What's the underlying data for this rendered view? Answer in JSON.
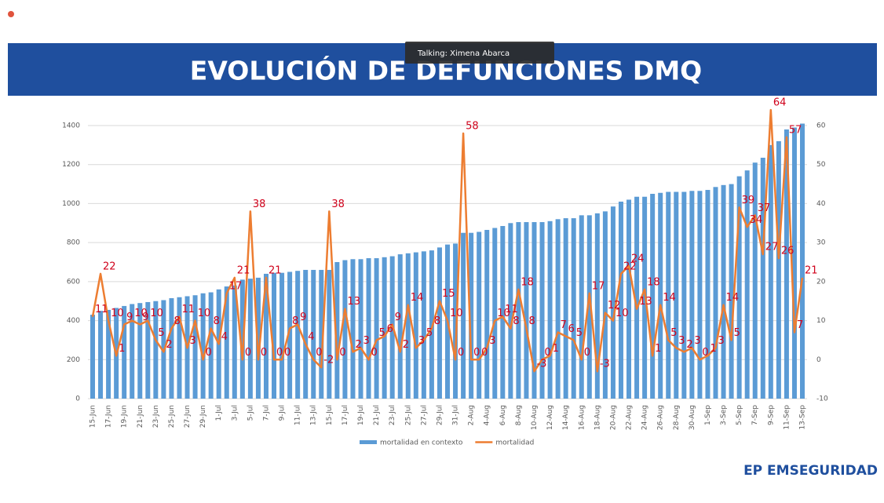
{
  "overlay": {
    "speaker": "Talking: Ximena Abarca"
  },
  "logo": {
    "name": "EP EMSEGURIDAD"
  },
  "chart_data": {
    "type": "combo",
    "title": "EVOLUCIÓN DE DEFUNCIONES DMQ",
    "categories": [
      "15-Jun",
      null,
      "17-Jun",
      null,
      "19-Jun",
      null,
      "21-Jun",
      null,
      "23-Jun",
      null,
      "25-Jun",
      null,
      "27-Jun",
      null,
      "29-Jun",
      null,
      "1-Jul",
      null,
      "3-Jul",
      null,
      "5-Jul",
      null,
      "7-Jul",
      null,
      "9-Jul",
      null,
      "11-Jul",
      null,
      "13-Jul",
      null,
      "15-Jul",
      null,
      "17-Jul",
      null,
      "19-Jul",
      null,
      "21-Jul",
      null,
      "23-Jul",
      null,
      "25-Jul",
      null,
      "27-Jul",
      null,
      "29-Jul",
      null,
      "31-Jul",
      null,
      "2-Aug",
      null,
      "4-Aug",
      null,
      "6-Aug",
      null,
      "8-Aug",
      null,
      "10-Aug",
      null,
      "12-Aug",
      null,
      "14-Aug",
      null,
      "16-Aug",
      null,
      "18-Aug",
      null,
      "20-Aug",
      null,
      "22-Aug",
      null,
      "24-Aug",
      null,
      "26-Aug",
      null,
      "28-Aug",
      null,
      "30-Aug",
      null,
      "1-Sep",
      null,
      "3-Sep",
      null,
      "5-Sep",
      null,
      "7-Sep",
      null,
      "9-Sep",
      null,
      "11-Sep",
      null,
      "13-Sep"
    ],
    "series": [
      {
        "name": "mortalidad en contexto",
        "type": "bar",
        "color": "#5b9bd5",
        "values": [
          430,
          450,
          455,
          465,
          475,
          485,
          490,
          495,
          500,
          505,
          515,
          520,
          525,
          530,
          540,
          545,
          560,
          575,
          580,
          610,
          615,
          620,
          640,
          645,
          645,
          650,
          655,
          660,
          660,
          660,
          660,
          700,
          710,
          715,
          715,
          720,
          720,
          725,
          730,
          740,
          745,
          750,
          755,
          760,
          775,
          790,
          795,
          850,
          850,
          855,
          865,
          875,
          885,
          900,
          905,
          905,
          905,
          905,
          910,
          920,
          925,
          925,
          940,
          940,
          950,
          960,
          985,
          1010,
          1020,
          1035,
          1035,
          1050,
          1055,
          1060,
          1060,
          1060,
          1065,
          1065,
          1070,
          1085,
          1095,
          1100,
          1140,
          1170,
          1210,
          1235,
          1300,
          1320,
          1380,
          1390,
          1410
        ]
      },
      {
        "name": "mortalidad",
        "type": "line",
        "axis": "y2",
        "color": "#ed7d31",
        "values": [
          11,
          22,
          10,
          1,
          9,
          10,
          9,
          10,
          5,
          2,
          8,
          11,
          3,
          10,
          0,
          8,
          4,
          17,
          21,
          0,
          38,
          0,
          21,
          0,
          0,
          8,
          9,
          4,
          0,
          -2,
          38,
          0,
          13,
          2,
          3,
          0,
          5,
          6,
          9,
          2,
          14,
          3,
          5,
          8,
          15,
          10,
          0,
          58,
          0,
          0,
          3,
          10,
          11,
          8,
          18,
          8,
          -3,
          0,
          1,
          7,
          6,
          5,
          0,
          17,
          -3,
          12,
          10,
          22,
          24,
          13,
          18,
          1,
          14,
          5,
          3,
          2,
          3,
          0,
          1,
          3,
          14,
          5,
          39,
          34,
          37,
          27,
          64,
          26,
          57,
          7,
          21
        ]
      }
    ],
    "ylim": [
      0,
      1400
    ],
    "yticks": [
      0,
      200,
      400,
      600,
      800,
      1000,
      1200,
      1400
    ],
    "y2lim": [
      -10,
      60
    ],
    "y2ticks": [
      -10,
      0,
      10,
      20,
      30,
      40,
      50,
      60
    ],
    "grid": true
  }
}
